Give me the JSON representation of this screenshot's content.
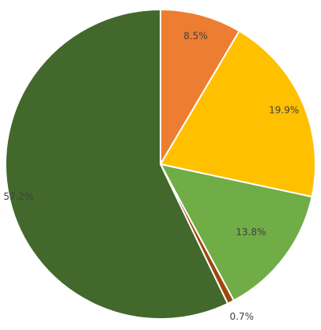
{
  "chart_data": {
    "type": "pie",
    "start_angle_deg": 0,
    "direction": "clockwise",
    "legend": "none",
    "slices": [
      {
        "label": "8.5%",
        "value": 8.5,
        "color": "#ED7D31"
      },
      {
        "label": "19.9%",
        "value": 19.9,
        "color": "#FFC000"
      },
      {
        "label": "13.8%",
        "value": 13.8,
        "color": "#70AD47"
      },
      {
        "label": "0.7%",
        "value": 0.7,
        "color": "#9E480E"
      },
      {
        "label": "57.2%",
        "value": 57.2,
        "color": "#43682B"
      }
    ]
  }
}
